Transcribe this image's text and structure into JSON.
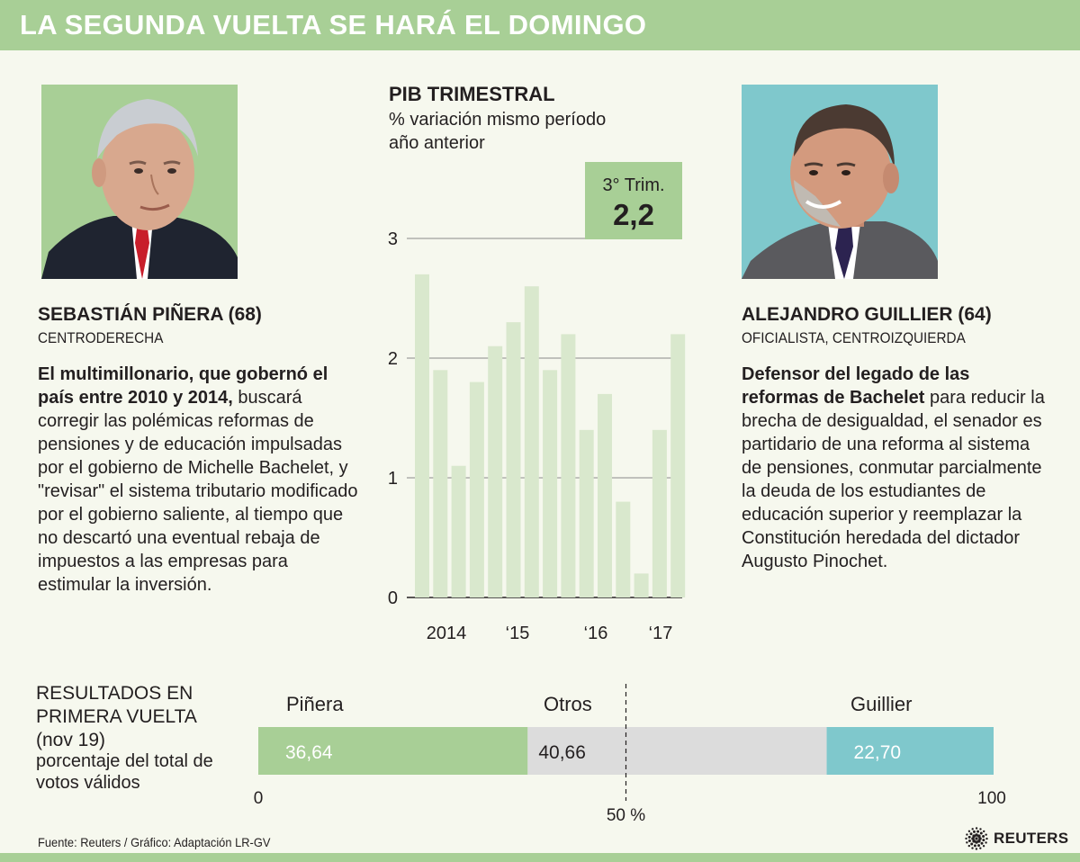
{
  "header": {
    "title": "LA SEGUNDA VUELTA SE HARÁ EL DOMINGO"
  },
  "colors": {
    "green": "#a8cf96",
    "bar_green": "#d9e8cd",
    "teal": "#7fc8cc",
    "grey": "#dcdcdc"
  },
  "left": {
    "name": "SEBASTIÁN PIÑERA (68)",
    "party": "CENTRODERECHA",
    "lead": "El multimillonario, que gobernó el país entre 2010 y 2014,",
    "body": "buscará corregir las polémicas reformas de pensiones y de educación impulsadas por el gobierno de Michelle Bachelet, y \"revisar\" el sistema tributario modificado por el gobierno saliente, al tiempo que no descartó una eventual rebaja de impuestos a las empresas para estimular la inversión."
  },
  "right": {
    "name": "ALEJANDRO GUILLIER (64)",
    "party": "OFICIALISTA, CENTROIZQUIERDA",
    "lead": "Defensor del legado de las reformas de Bachelet",
    "body": "para reducir la brecha de desigualdad, el senador es partidario de una reforma al sistema de pensiones, conmutar parcialmente la deuda de los estudiantes de educación superior y reemplazar la Constitución heredada del dictador Augusto Pinochet."
  },
  "pib": {
    "title": "PIB TRIMESTRAL",
    "subtitle": "% variación mismo período año anterior"
  },
  "chart_data": [
    {
      "type": "bar",
      "title": "PIB TRIMESTRAL",
      "subtitle": "% variación mismo período año anterior",
      "values": [
        2.7,
        1.9,
        1.1,
        1.8,
        2.1,
        2.3,
        2.6,
        1.9,
        2.2,
        1.4,
        1.7,
        0.8,
        0.2,
        1.4,
        2.2
      ],
      "x_tick_labels": [
        "2014",
        "‘15",
        "‘16",
        "‘17"
      ],
      "y_ticks": [
        "0",
        "1",
        "2",
        "3"
      ],
      "ylim": [
        0,
        3
      ],
      "grid": true,
      "callout": {
        "label": "3° Trim.",
        "value": "2,2"
      }
    },
    {
      "type": "bar",
      "title": "RESULTADOS EN PRIMERA VUELTA",
      "subtitle": "(nov 19)",
      "description": "porcentaje del total de votos válidos",
      "orientation": "horizontal-stacked",
      "categories": [
        "Piñera",
        "Otros",
        "Guillier"
      ],
      "values": [
        36.64,
        40.66,
        22.7
      ],
      "value_labels": [
        "36,64",
        "40,66",
        "22,70"
      ],
      "axis_labels": {
        "min": "0",
        "mid": "50 %",
        "max": "100"
      },
      "xlim": [
        0,
        100
      ],
      "reference_line": 50
    }
  ],
  "results": {
    "title": "RESULTADOS EN PRIMERA VUELTA",
    "date": "(nov 19)",
    "description": "porcentaje del total de votos válidos"
  },
  "footer": {
    "source": "Fuente: Reuters / Gráfico: Adaptación LR-GV",
    "brand": "REUTERS"
  }
}
